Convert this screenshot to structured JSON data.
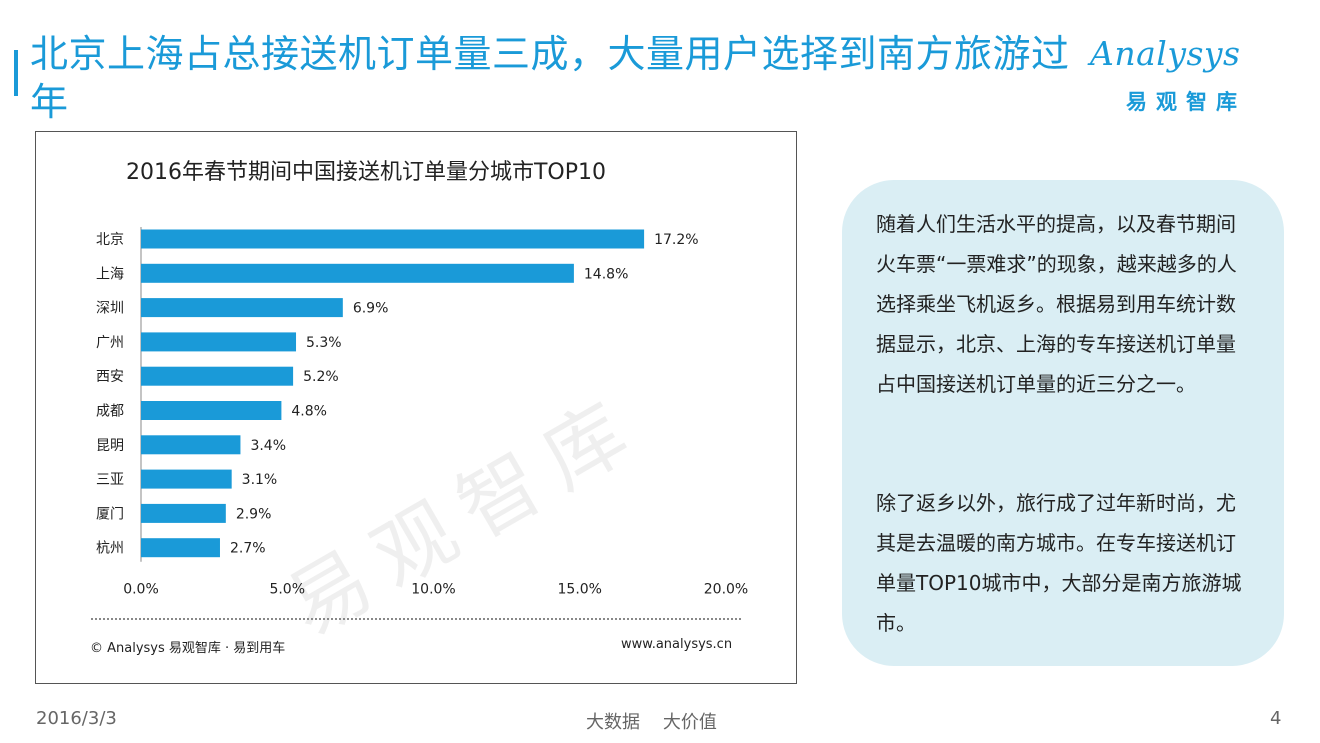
{
  "title": "北京上海占总接送机订单量三成，大量用户选择到南方旅游过年",
  "logo": {
    "word": "Analysys",
    "cn": "易观智库"
  },
  "chart_data": {
    "type": "bar",
    "orientation": "horizontal",
    "title": "2016年春节期间中国接送机订单量分城市TOP10",
    "categories": [
      "北京",
      "上海",
      "深圳",
      "广州",
      "西安",
      "成都",
      "昆明",
      "三亚",
      "厦门",
      "杭州"
    ],
    "values": [
      17.2,
      14.8,
      6.9,
      5.3,
      5.2,
      4.8,
      3.4,
      3.1,
      2.9,
      2.7
    ],
    "value_labels": [
      "17.2%",
      "14.8%",
      "6.9%",
      "5.3%",
      "5.2%",
      "4.8%",
      "3.4%",
      "3.1%",
      "2.9%",
      "2.7%"
    ],
    "xlim": [
      0,
      20
    ],
    "xticks": [
      0,
      5,
      10,
      15,
      20
    ],
    "xtick_labels": [
      "0.0%",
      "5.0%",
      "10.0%",
      "15.0%",
      "20.0%"
    ],
    "xlabel": "",
    "ylabel": "",
    "grid": false,
    "bar_color": "#1a9ad8"
  },
  "watermark": "易观智库",
  "chart_source": "© Analysys 易观智库 · 易到用车",
  "chart_site": "www.analysys.cn",
  "callout": {
    "p1": "随着人们生活水平的提高，以及春节期间火车票“一票难求”的现象，越来越多的人选择乘坐飞机返乡。根据易到用车统计数据显示，北京、上海的专车接送机订单量占中国接送机订单量的近三分之一。",
    "p2": "除了返乡以外，旅行成了过年新时尚，尤其是去温暖的南方城市。在专车接送机订单量TOP10城市中，大部分是南方旅游城市。"
  },
  "footer": {
    "date": "2016/3/3",
    "slogan": "大数据    大价值",
    "page": "4"
  },
  "colors": {
    "accent": "#1a9ad8",
    "callout_bg": "#daeef4"
  }
}
